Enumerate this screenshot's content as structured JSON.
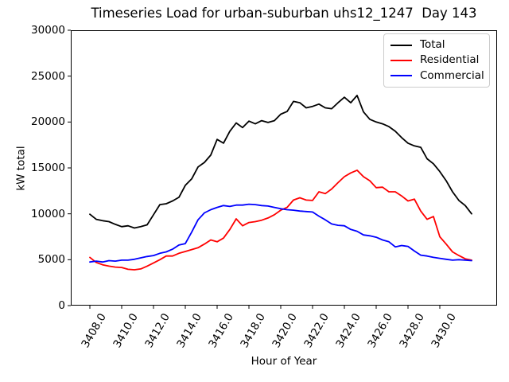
{
  "chart_data": {
    "type": "line",
    "title": "Timeseries Load for urban-suburban uhs12_1247  Day 143",
    "xlabel": "Hour of Year",
    "ylabel": "kW total",
    "xlim": [
      3406.8,
      3433.6
    ],
    "ylim": [
      0,
      30000
    ],
    "grid": false,
    "legend_position": "upper right",
    "xticks": [
      3408,
      3410,
      3412,
      3414,
      3416,
      3418,
      3420,
      3422,
      3424,
      3426,
      3428,
      3430
    ],
    "xtick_labels": [
      "3408.0",
      "3410.0",
      "3412.0",
      "3414.0",
      "3416.0",
      "3418.0",
      "3420.0",
      "3422.0",
      "3424.0",
      "3426.0",
      "3428.0",
      "3430.0"
    ],
    "yticks": [
      0,
      5000,
      10000,
      15000,
      20000,
      25000,
      30000
    ],
    "ytick_labels": [
      "0",
      "5000",
      "10000",
      "15000",
      "20000",
      "25000",
      "30000"
    ],
    "x": [
      3408,
      3408.4,
      3408.8,
      3409.2,
      3409.6,
      3410,
      3410.4,
      3410.8,
      3411.2,
      3411.6,
      3412,
      3412.4,
      3412.8,
      3413.2,
      3413.6,
      3414,
      3414.4,
      3414.8,
      3415.2,
      3415.6,
      3416,
      3416.4,
      3416.8,
      3417.2,
      3417.6,
      3418,
      3418.4,
      3418.8,
      3419.2,
      3419.6,
      3420,
      3420.4,
      3420.8,
      3421.2,
      3421.6,
      3422,
      3422.4,
      3422.8,
      3423.2,
      3423.6,
      3424,
      3424.4,
      3424.8,
      3425.2,
      3425.6,
      3426,
      3426.4,
      3426.8,
      3427.2,
      3427.6,
      3428,
      3428.4,
      3428.8,
      3429.2,
      3429.6,
      3430,
      3430.4,
      3430.8,
      3431.2,
      3431.6,
      3432
    ],
    "series": [
      {
        "name": "Total",
        "color": "#000000",
        "values": [
          9950,
          9400,
          9250,
          9150,
          8850,
          8600,
          8700,
          8450,
          8600,
          8800,
          9900,
          11000,
          11100,
          11400,
          11800,
          13100,
          13800,
          15100,
          15600,
          16400,
          18100,
          17700,
          19000,
          19900,
          19400,
          20100,
          19800,
          20150,
          19950,
          20150,
          20850,
          21150,
          22250,
          22100,
          21550,
          21700,
          21950,
          21550,
          21450,
          22100,
          22700,
          22100,
          22900,
          21100,
          20300,
          20000,
          19800,
          19500,
          19000,
          18300,
          17700,
          17400,
          17250,
          16000,
          15450,
          14600,
          13600,
          12400,
          11450,
          10900,
          10000
        ]
      },
      {
        "name": "Residential",
        "color": "#ff0000",
        "values": [
          5250,
          4700,
          4450,
          4300,
          4200,
          4150,
          3950,
          3900,
          4000,
          4300,
          4650,
          5000,
          5400,
          5400,
          5700,
          5900,
          6100,
          6300,
          6700,
          7150,
          6950,
          7350,
          8300,
          9450,
          8700,
          9050,
          9150,
          9300,
          9550,
          9900,
          10400,
          10700,
          11500,
          11750,
          11500,
          11450,
          12400,
          12200,
          12700,
          13400,
          14050,
          14450,
          14750,
          14050,
          13600,
          12850,
          12900,
          12400,
          12400,
          11950,
          11400,
          11600,
          10300,
          9400,
          9700,
          7500,
          6700,
          5850,
          5450,
          5100,
          4950
        ]
      },
      {
        "name": "Commercial",
        "color": "#0000ff",
        "values": [
          4750,
          4850,
          4750,
          4900,
          4850,
          4950,
          4950,
          5050,
          5200,
          5350,
          5450,
          5700,
          5850,
          6150,
          6600,
          6750,
          8000,
          9350,
          10100,
          10450,
          10700,
          10900,
          10800,
          10950,
          10950,
          11050,
          11000,
          10900,
          10850,
          10700,
          10550,
          10450,
          10400,
          10300,
          10250,
          10200,
          9750,
          9350,
          8900,
          8750,
          8700,
          8300,
          8100,
          7700,
          7600,
          7450,
          7150,
          6950,
          6400,
          6550,
          6450,
          5950,
          5500,
          5400,
          5250,
          5150,
          5050,
          4950,
          5000,
          4950,
          4900
        ]
      }
    ]
  }
}
